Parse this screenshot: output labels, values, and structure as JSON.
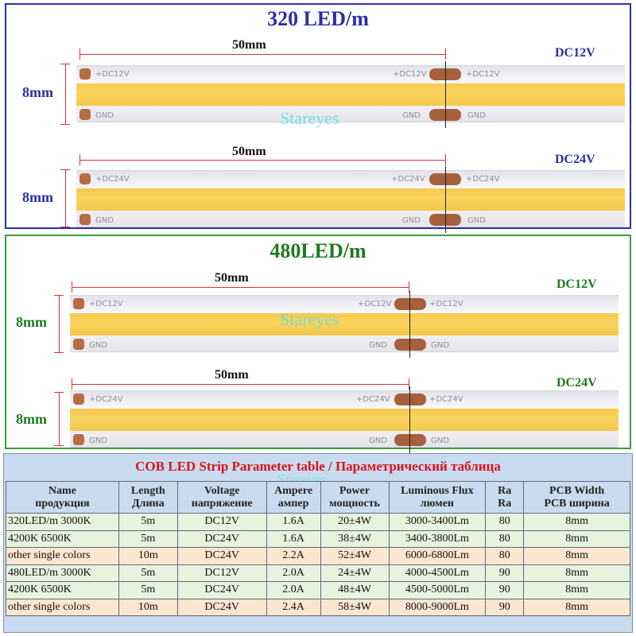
{
  "section_320": {
    "title": "320 LED/m",
    "strips": [
      {
        "voltage": "DC12V",
        "length_label": "50mm",
        "width_label": "8mm",
        "pos_label": "+DC12V",
        "gnd_label": "GND"
      },
      {
        "voltage": "DC24V",
        "length_label": "50mm",
        "width_label": "8mm",
        "pos_label": "+DC24V",
        "gnd_label": "GND"
      }
    ]
  },
  "section_480": {
    "title": "480LED/m",
    "strips": [
      {
        "voltage": "DC12V",
        "length_label": "50mm",
        "width_label": "8mm",
        "pos_label": "+DC12V",
        "gnd_label": "GND"
      },
      {
        "voltage": "DC24V",
        "length_label": "50mm",
        "width_label": "8mm",
        "pos_label": "+DC24V",
        "gnd_label": "GND"
      }
    ]
  },
  "watermark": "Stareyes",
  "table": {
    "title": "COB LED Strip Parameter table / Параметрический таблица",
    "headers": [
      {
        "en": "Name",
        "ru": "продукция"
      },
      {
        "en": "Length",
        "ru": "Длина"
      },
      {
        "en": "Voltage",
        "ru": "напряжение"
      },
      {
        "en": "Ampere",
        "ru": "ампер"
      },
      {
        "en": "Power",
        "ru": "мощность"
      },
      {
        "en": "Luminous Flux",
        "ru": "люмен"
      },
      {
        "en": "Ra",
        "ru": "Ra"
      },
      {
        "en": "PCB Width",
        "ru": "PCB ширина"
      }
    ],
    "rows": [
      {
        "name": "320LED/m 3000K",
        "length": "5m",
        "voltage": "DC12V",
        "ampere": "1.6A",
        "power": "20±4W",
        "flux": "3000-3400Lm",
        "ra": "80",
        "width": "8mm"
      },
      {
        "name": "4200K 6500K",
        "length": "5m",
        "voltage": "DC24V",
        "ampere": "1.6A",
        "power": "38±4W",
        "flux": "3400-3800Lm",
        "ra": "80",
        "width": "8mm"
      },
      {
        "name": "other single colors",
        "length": "10m",
        "voltage": "DC24V",
        "ampere": "2.2A",
        "power": "52±4W",
        "flux": "6000-6800Lm",
        "ra": "80",
        "width": "8mm"
      },
      {
        "name": "480LED/m 3000K",
        "length": "5m",
        "voltage": "DC12V",
        "ampere": "2.0A",
        "power": "24±4W",
        "flux": "4000-4500Lm",
        "ra": "90",
        "width": "8mm"
      },
      {
        "name": "4200K 6500K",
        "length": "5m",
        "voltage": "DC24V",
        "ampere": "2.0A",
        "power": "48±4W",
        "flux": "4500-5000Lm",
        "ra": "90",
        "width": "8mm"
      },
      {
        "name": "other single colors",
        "length": "10m",
        "voltage": "DC24V",
        "ampere": "2.4A",
        "power": "58±4W",
        "flux": "8000-9000Lm",
        "ra": "90",
        "width": "8mm"
      }
    ]
  },
  "colors": {
    "section_320_accent": "#2b2fa8",
    "section_480_accent": "#1e7a1e",
    "strip_phosphor": "#f6c84a",
    "solder_pad": "#b86c43",
    "dimension_line": "#d8303a",
    "watermark": "#5fe0e0",
    "table_title": "#d8141b",
    "table_header_bg": "#c9dcef",
    "table_row_green": "#e7f3dd",
    "table_row_orange": "#fbe6d0"
  }
}
